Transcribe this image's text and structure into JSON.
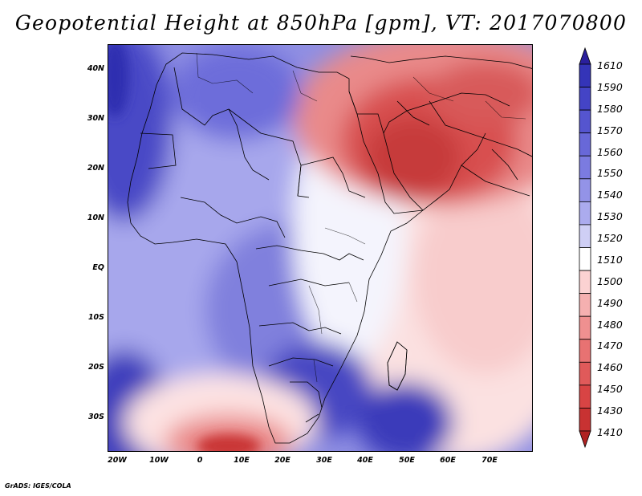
{
  "title": "Geopotential Height at 850hPa [gpm], VT: 2017070800",
  "credit": "GrADS: IGES/COLA",
  "chart_data": {
    "type": "heatmap",
    "variable": "Geopotential Height",
    "level": "850hPa",
    "units": "gpm",
    "valid_time": "2017070800",
    "lat_tick_labels": [
      "40N",
      "30N",
      "20N",
      "10N",
      "EQ",
      "10S",
      "20S",
      "30S"
    ],
    "lon_tick_labels": [
      "20W",
      "10W",
      "0",
      "10E",
      "20E",
      "30E",
      "40E",
      "50E",
      "60E",
      "70E"
    ],
    "colorbar_levels": [
      1610,
      1590,
      1580,
      1570,
      1560,
      1550,
      1540,
      1530,
      1520,
      1510,
      1500,
      1490,
      1480,
      1470,
      1460,
      1450,
      1430,
      1410
    ],
    "colorbar_labels": [
      "1610",
      "1590",
      "1580",
      "1570",
      "1560",
      "1550",
      "1540",
      "1530",
      "1520",
      "1510",
      "1500",
      "1490",
      "1480",
      "1470",
      "1460",
      "1450",
      "1430",
      "1410"
    ],
    "colorbar_colors": [
      "#2a1f9d",
      "#3434b8",
      "#4444c6",
      "#5555cf",
      "#6868d8",
      "#7b7be0",
      "#9393e7",
      "#ababee",
      "#cfcff5",
      "#ffffff",
      "#fbd2d2",
      "#f5b0b0",
      "#ef9090",
      "#e87272",
      "#e05a5a",
      "#d84444",
      "#c83232",
      "#b02222"
    ],
    "colorbar_position": "right"
  }
}
